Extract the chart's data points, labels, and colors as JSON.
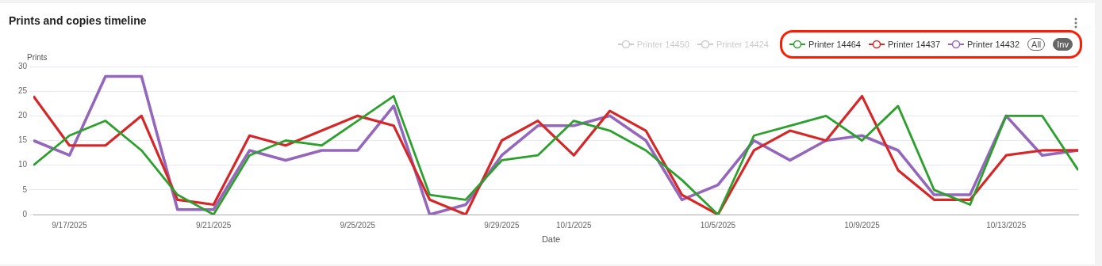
{
  "chart_data": {
    "type": "line",
    "title": "Prints and copies timeline",
    "xlabel": "Date",
    "ylabel": "Prints",
    "x": [
      "2025-09-16",
      "2025-09-17",
      "2025-09-18",
      "2025-09-19",
      "2025-09-20",
      "2025-09-21",
      "2025-09-22",
      "2025-09-23",
      "2025-09-24",
      "2025-09-25",
      "2025-09-26",
      "2025-09-27",
      "2025-09-28",
      "2025-09-29",
      "2025-09-30",
      "2025-10-01",
      "2025-10-02",
      "2025-10-03",
      "2025-10-04",
      "2025-10-05",
      "2025-10-06",
      "2025-10-07",
      "2025-10-08",
      "2025-10-09",
      "2025-10-10",
      "2025-10-11",
      "2025-10-12",
      "2025-10-13",
      "2025-10-14",
      "2025-10-15"
    ],
    "series": [
      {
        "name": "Printer 14450",
        "color": "#cccccc",
        "values": [
          null,
          null,
          null,
          null,
          null,
          null,
          null,
          null,
          null,
          null,
          null,
          null,
          null,
          null,
          null,
          null,
          null,
          null,
          null,
          null,
          null,
          null,
          null,
          null,
          null,
          null,
          null,
          null,
          null,
          null
        ]
      },
      {
        "name": "Printer 14424",
        "color": "#cccccc",
        "values": [
          null,
          null,
          null,
          null,
          null,
          null,
          null,
          null,
          null,
          null,
          null,
          null,
          null,
          null,
          null,
          null,
          null,
          null,
          null,
          null,
          null,
          null,
          null,
          null,
          null,
          null,
          null,
          null,
          null,
          null
        ]
      },
      {
        "name": "Printer 14464",
        "color": "#2ca02c",
        "values": [
          10,
          16,
          19,
          13,
          4,
          0,
          12,
          15,
          14,
          19,
          24,
          4,
          3,
          11,
          12,
          19,
          17,
          13,
          7,
          0,
          16,
          18,
          20,
          15,
          22,
          5,
          2,
          20,
          20,
          9
        ]
      },
      {
        "name": "Printer 14437",
        "color": "#d62728",
        "values": [
          24,
          14,
          14,
          20,
          3,
          2,
          16,
          14,
          17,
          20,
          18,
          3,
          0,
          15,
          19,
          12,
          21,
          17,
          4,
          0,
          13,
          17,
          15,
          24,
          9,
          3,
          3,
          12,
          13,
          13
        ]
      },
      {
        "name": "Printer 14432",
        "color": "#9467bd",
        "values": [
          15,
          12,
          28,
          28,
          1,
          1,
          13,
          11,
          13,
          13,
          22,
          0,
          2,
          12,
          18,
          18,
          20,
          15,
          3,
          6,
          15,
          11,
          15,
          16,
          13,
          4,
          4,
          20,
          12,
          13
        ]
      }
    ],
    "xlim": [
      "2025-09-16",
      "2025-10-15"
    ],
    "xticks": [
      {
        "value": "2025-09-17",
        "label": "9/17/2025"
      },
      {
        "value": "2025-09-21",
        "label": "9/21/2025"
      },
      {
        "value": "2025-09-25",
        "label": "9/25/2025"
      },
      {
        "value": "2025-09-29",
        "label": "9/29/2025"
      },
      {
        "value": "2025-10-01",
        "label": "10/1/2025"
      },
      {
        "value": "2025-10-05",
        "label": "10/5/2025"
      },
      {
        "value": "2025-10-09",
        "label": "10/9/2025"
      },
      {
        "value": "2025-10-13",
        "label": "10/13/2025"
      }
    ],
    "ylim": [
      0,
      30
    ],
    "yticks": [
      0,
      5,
      10,
      15,
      20,
      25,
      30
    ],
    "grid": "y",
    "legend": "top right",
    "marker": "none",
    "line_style": "solid",
    "annotations": [
      "All",
      "Inv"
    ]
  }
}
